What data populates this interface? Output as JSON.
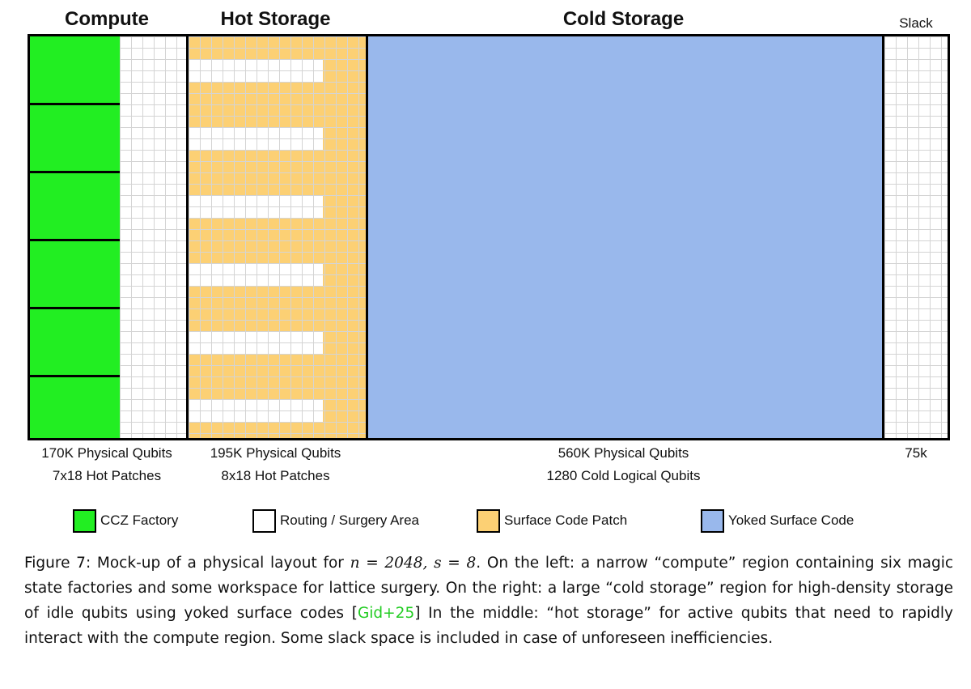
{
  "titles": {
    "compute": "Compute",
    "hot": "Hot Storage",
    "cold": "Cold Storage",
    "slack": "Slack"
  },
  "colors": {
    "ccz_factory": "#22ee22",
    "routing": "#ffffff",
    "surface_patch": "#fcd074",
    "yoked": "#99b8ec",
    "grid_line": "#d4d4d4"
  },
  "captions": {
    "compute": [
      "170K Physical Qubits",
      "7x18 Hot Patches"
    ],
    "hot": [
      "195K Physical Qubits",
      "8x18 Hot Patches"
    ],
    "cold": [
      "560K Physical Qubits",
      "1280 Cold Logical Qubits"
    ],
    "slack": [
      "75k"
    ]
  },
  "legend": [
    {
      "label": "CCZ Factory",
      "color": "#22ee22"
    },
    {
      "label": "Routing / Surgery Area",
      "color": "#ffffff"
    },
    {
      "label": "Surface Code Patch",
      "color": "#fcd074"
    },
    {
      "label": "Yoked Surface Code",
      "color": "#99b8ec"
    }
  ],
  "figure": {
    "label": "Figure 7:",
    "text_a": "Mock-up of a physical layout for ",
    "math": "n = 2048, s = 8",
    "text_b": ". On the left: a narrow “compute” region containing six magic state factories and some workspace for lattice surgery. On the right: a large “cold storage” region for high-density storage of idle qubits using yoked surface codes [",
    "citation": "Gid+25",
    "text_c": "] In the middle: “hot storage” for active qubits that need to rapidly interact with the compute region. Some slack space is included in case of unforeseen inefficiencies."
  }
}
